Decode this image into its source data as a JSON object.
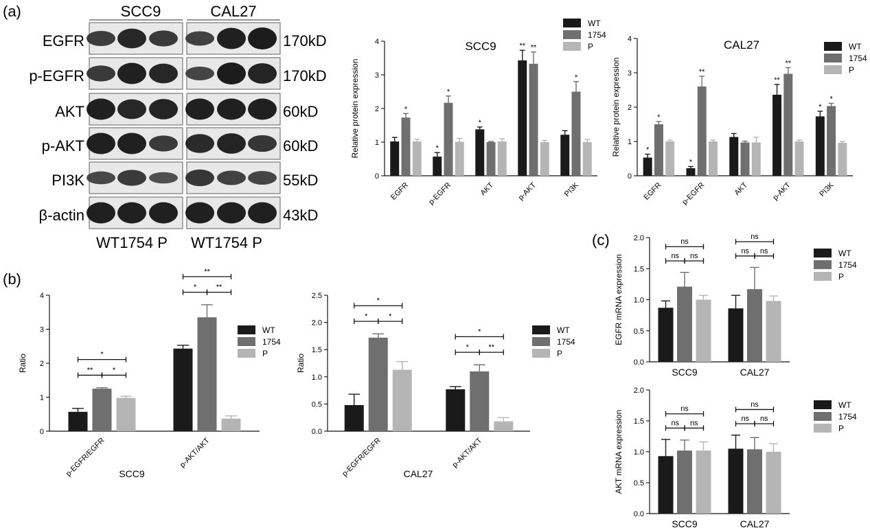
{
  "panels": {
    "a": "(a)",
    "b": "(b)",
    "c": "(c)"
  },
  "colors": {
    "WT": "#1a1a1a",
    "1754": "#6f6f6f",
    "P": "#b5b5b5"
  },
  "blot": {
    "groups": [
      "SCC9",
      "CAL27"
    ],
    "rows": [
      {
        "label": "EGFR",
        "mw": "170kD"
      },
      {
        "label": "p-EGFR",
        "mw": "170kD"
      },
      {
        "label": "AKT",
        "mw": "60kD"
      },
      {
        "label": "p-AKT",
        "mw": "60kD"
      },
      {
        "label": "PI3K",
        "mw": "55kD"
      },
      {
        "label": "β-actin",
        "mw": "43kD"
      }
    ],
    "lane_labels": [
      "WT1754 P",
      "WT1754 P"
    ]
  },
  "chart_data": [
    {
      "id": "a-scc9",
      "type": "bar",
      "title": "SCC9",
      "xlabel": "",
      "ylabel": "Relative protein expression",
      "ylim": [
        0,
        4
      ],
      "yticks": [
        "0",
        "1",
        "2",
        "3",
        "4"
      ],
      "categories": [
        "EGFR",
        "p-EGFR",
        "AKT",
        "p-AKT",
        "PI3K"
      ],
      "series": [
        {
          "name": "WT",
          "values": [
            1.02,
            0.57,
            1.38,
            3.43,
            1.22
          ],
          "errors": [
            0.12,
            0.12,
            0.07,
            0.3,
            0.12
          ],
          "sig": [
            "",
            "*",
            "*",
            "**",
            ""
          ]
        },
        {
          "name": "1754",
          "values": [
            1.73,
            2.17,
            1.0,
            3.33,
            2.5
          ],
          "errors": [
            0.12,
            0.2,
            0.02,
            0.35,
            0.3
          ],
          "sig": [
            "*",
            "*",
            "",
            "**",
            "*"
          ]
        },
        {
          "name": "P",
          "values": [
            1.02,
            1.01,
            1.02,
            1.0,
            1.0
          ],
          "errors": [
            0.06,
            0.1,
            0.08,
            0.05,
            0.08
          ],
          "sig": [
            "",
            "",
            "",
            "",
            ""
          ]
        }
      ],
      "legend": [
        "WT",
        "1754",
        "P"
      ],
      "legend_position": "top-right"
    },
    {
      "id": "a-cal27",
      "type": "bar",
      "title": "CAL27",
      "xlabel": "",
      "ylabel": "Relative protein expression",
      "ylim": [
        0,
        4
      ],
      "yticks": [
        "0",
        "1",
        "2",
        "3",
        "4"
      ],
      "categories": [
        "EGFR",
        "p-EGFR",
        "AKT",
        "p-AKT",
        "PI3K"
      ],
      "series": [
        {
          "name": "WT",
          "values": [
            0.53,
            0.22,
            1.13,
            2.36,
            1.73
          ],
          "errors": [
            0.1,
            0.05,
            0.1,
            0.3,
            0.15
          ],
          "sig": [
            "*",
            "*",
            "",
            "**",
            "*"
          ]
        },
        {
          "name": "1754",
          "values": [
            1.5,
            2.6,
            0.97,
            2.97,
            2.03
          ],
          "errors": [
            0.08,
            0.3,
            0.04,
            0.18,
            0.08
          ],
          "sig": [
            "*",
            "**",
            "",
            "**",
            "*"
          ]
        },
        {
          "name": "P",
          "values": [
            1.0,
            1.0,
            0.97,
            1.0,
            0.96
          ],
          "errors": [
            0.04,
            0.04,
            0.15,
            0.04,
            0.04
          ],
          "sig": [
            "",
            "",
            "",
            "",
            ""
          ]
        }
      ],
      "legend": [
        "WT",
        "1754",
        "P"
      ],
      "legend_position": "top-right"
    },
    {
      "id": "b-scc9",
      "type": "bar",
      "title": "",
      "xlabel": "SCC9",
      "ylabel": "Ratio",
      "ylim": [
        0,
        4
      ],
      "yticks": [
        "0",
        "1",
        "2",
        "3",
        "4"
      ],
      "categories": [
        "p-EGFR/EGFR",
        "p-AKT/AKT"
      ],
      "series": [
        {
          "name": "WT",
          "values": [
            0.57,
            2.43
          ],
          "errors": [
            0.1,
            0.1
          ]
        },
        {
          "name": "1754",
          "values": [
            1.25,
            3.35
          ],
          "errors": [
            0.03,
            0.37
          ]
        },
        {
          "name": "P",
          "values": [
            0.98,
            0.37
          ],
          "errors": [
            0.05,
            0.08
          ]
        }
      ],
      "comparisons": [
        [
          {
            "a": 0,
            "b": 2,
            "label": "*"
          },
          {
            "a": 0,
            "b": 1,
            "label": "**"
          },
          {
            "a": 1,
            "b": 2,
            "label": "*"
          }
        ],
        [
          {
            "a": 0,
            "b": 2,
            "label": "**"
          },
          {
            "a": 0,
            "b": 1,
            "label": "*"
          },
          {
            "a": 1,
            "b": 2,
            "label": "**"
          }
        ]
      ],
      "legend": [
        "WT",
        "1754",
        "P"
      ],
      "legend_position": "right"
    },
    {
      "id": "b-cal27",
      "type": "bar",
      "title": "",
      "xlabel": "CAL27",
      "ylabel": "Ratio",
      "ylim": [
        0,
        2.5
      ],
      "yticks": [
        "0.0",
        "0.5",
        "1.0",
        "1.5",
        "2.0",
        "2.5"
      ],
      "categories": [
        "p-EGFR/EGFR",
        "p-AKT/AKT"
      ],
      "series": [
        {
          "name": "WT",
          "values": [
            0.48,
            0.77
          ],
          "errors": [
            0.2,
            0.05
          ]
        },
        {
          "name": "1754",
          "values": [
            1.72,
            1.1
          ],
          "errors": [
            0.07,
            0.12
          ]
        },
        {
          "name": "P",
          "values": [
            1.13,
            0.18
          ],
          "errors": [
            0.15,
            0.07
          ]
        }
      ],
      "comparisons": [
        [
          {
            "a": 0,
            "b": 2,
            "label": "*"
          },
          {
            "a": 0,
            "b": 1,
            "label": "*"
          },
          {
            "a": 1,
            "b": 2,
            "label": "*"
          }
        ],
        [
          {
            "a": 0,
            "b": 2,
            "label": "*"
          },
          {
            "a": 0,
            "b": 1,
            "label": "*"
          },
          {
            "a": 1,
            "b": 2,
            "label": "**"
          }
        ]
      ],
      "legend": [
        "WT",
        "1754",
        "P"
      ],
      "legend_position": "right"
    },
    {
      "id": "c-egfr",
      "type": "bar",
      "title": "",
      "xlabel": "",
      "ylabel": "EGFR mRNA expression",
      "ylim": [
        0,
        2.0
      ],
      "yticks": [
        "0.0",
        "0.5",
        "1.0",
        "1.5",
        "2.0"
      ],
      "categories": [
        "SCC9",
        "CAL27"
      ],
      "series": [
        {
          "name": "WT",
          "values": [
            0.87,
            0.86
          ],
          "errors": [
            0.11,
            0.21
          ]
        },
        {
          "name": "1754",
          "values": [
            1.21,
            1.17
          ],
          "errors": [
            0.23,
            0.35
          ]
        },
        {
          "name": "P",
          "values": [
            1.0,
            0.98
          ],
          "errors": [
            0.07,
            0.08
          ]
        }
      ],
      "comparisons": [
        [
          {
            "a": 0,
            "b": 2,
            "label": "ns"
          },
          {
            "a": 0,
            "b": 1,
            "label": "ns"
          },
          {
            "a": 1,
            "b": 2,
            "label": "ns"
          }
        ],
        [
          {
            "a": 0,
            "b": 2,
            "label": "ns"
          },
          {
            "a": 0,
            "b": 1,
            "label": "ns"
          },
          {
            "a": 1,
            "b": 2,
            "label": "ns"
          }
        ]
      ],
      "legend": [
        "WT",
        "1754",
        "P"
      ],
      "legend_position": "right"
    },
    {
      "id": "c-akt",
      "type": "bar",
      "title": "",
      "xlabel": "",
      "ylabel": "AKT mRNA expression",
      "ylim": [
        0,
        2.0
      ],
      "yticks": [
        "0.0",
        "0.5",
        "1.0",
        "1.5",
        "2.0"
      ],
      "categories": [
        "SCC9",
        "CAL27"
      ],
      "series": [
        {
          "name": "WT",
          "values": [
            0.93,
            1.05
          ],
          "errors": [
            0.27,
            0.22
          ]
        },
        {
          "name": "1754",
          "values": [
            1.02,
            1.04
          ],
          "errors": [
            0.17,
            0.19
          ]
        },
        {
          "name": "P",
          "values": [
            1.02,
            1.0
          ],
          "errors": [
            0.14,
            0.13
          ]
        }
      ],
      "comparisons": [
        [
          {
            "a": 0,
            "b": 2,
            "label": "ns"
          },
          {
            "a": 0,
            "b": 1,
            "label": "ns"
          },
          {
            "a": 1,
            "b": 2,
            "label": "ns"
          }
        ],
        [
          {
            "a": 0,
            "b": 2,
            "label": "ns"
          },
          {
            "a": 0,
            "b": 1,
            "label": "ns"
          },
          {
            "a": 1,
            "b": 2,
            "label": "ns"
          }
        ]
      ],
      "legend": [
        "WT",
        "1754",
        "P"
      ],
      "legend_position": "right"
    }
  ]
}
